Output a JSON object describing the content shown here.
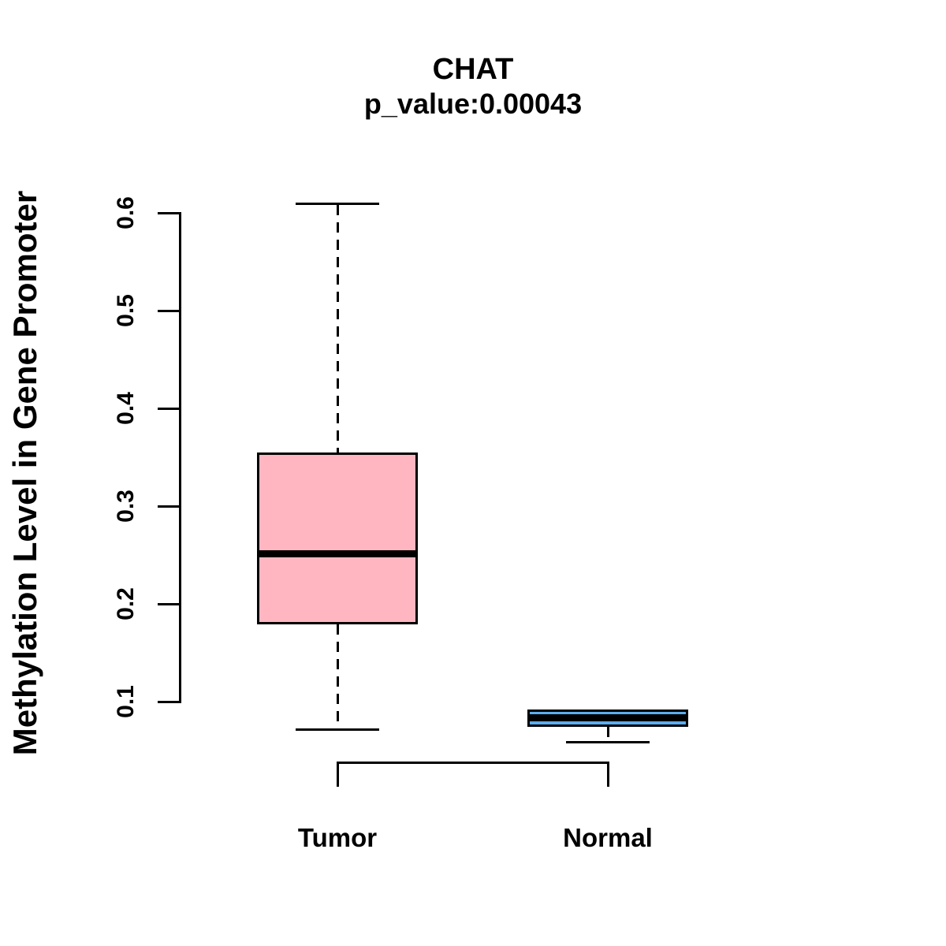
{
  "title": "CHAT",
  "subtitle": "p_value:0.00043",
  "chart_data": {
    "type": "boxplot",
    "title": "CHAT",
    "subtitle": "p_value:0.00043",
    "xlabel": "",
    "ylabel": "Methylation Level in Gene Promoter",
    "ylim": [
      0.1,
      0.6
    ],
    "yticks": [
      "0.1",
      "0.2",
      "0.3",
      "0.4",
      "0.5",
      "0.6"
    ],
    "grid": false,
    "legend": "none",
    "categories": [
      "Tumor",
      "Normal"
    ],
    "series": [
      {
        "name": "Tumor",
        "fill_color": "#FFB6C1",
        "whisker_low": 0.072,
        "q1": 0.179,
        "median": 0.252,
        "q3": 0.355,
        "whisker_high": 0.61
      },
      {
        "name": "Normal",
        "fill_color": "#5CACEE",
        "whisker_low": 0.059,
        "q1": 0.074,
        "median": 0.084,
        "q3": 0.092,
        "whisker_high": 0.092
      }
    ],
    "colors": {
      "stroke": "#000000",
      "background": "#ffffff",
      "tumor_fill": "#FFB6C1",
      "normal_fill": "#5CACEE"
    }
  }
}
